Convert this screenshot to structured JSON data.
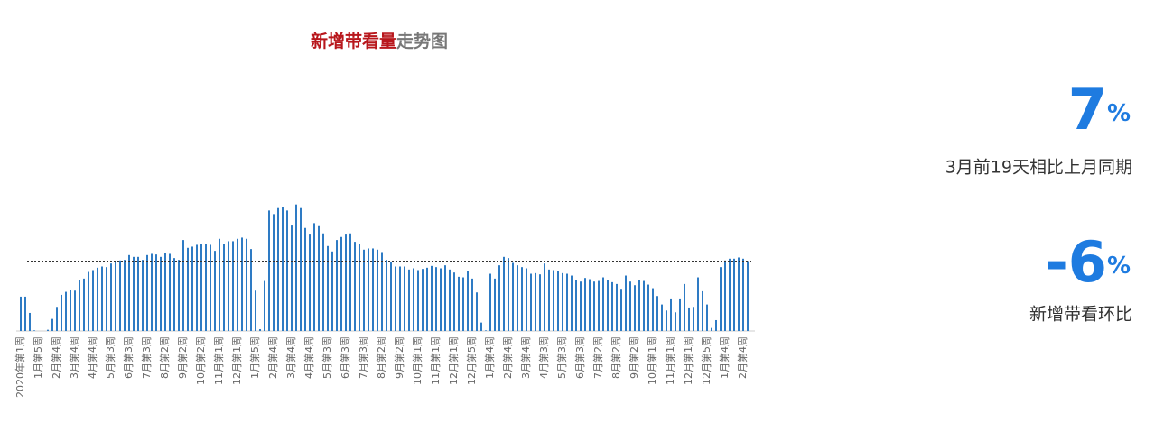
{
  "chart_data": {
    "type": "bar",
    "title": {
      "highlight": "新增带看量",
      "rest": "走势图"
    },
    "categories": [
      "2020年第1周",
      null,
      null,
      null,
      "1月第5周",
      null,
      null,
      null,
      "2月第4周",
      null,
      null,
      null,
      "3月第4周",
      null,
      null,
      null,
      "4月第4周",
      null,
      null,
      null,
      "5月第3周",
      null,
      null,
      null,
      "6月第3周",
      null,
      null,
      null,
      "7月第3周",
      null,
      null,
      null,
      "8月第2周",
      null,
      null,
      null,
      "9月第2周",
      null,
      null,
      null,
      "10月第2周",
      null,
      null,
      null,
      "11月第1周",
      null,
      null,
      null,
      "12月第1周",
      null,
      null,
      null,
      "1月第5周",
      null,
      null,
      null,
      "2月第4周",
      null,
      null,
      null,
      "3月第4周",
      null,
      null,
      null,
      "4月第4周",
      null,
      null,
      null,
      "5月第3周",
      null,
      null,
      null,
      "6月第3周",
      null,
      null,
      null,
      "7月第3周",
      null,
      null,
      null,
      "8月第2周",
      null,
      null,
      null,
      "9月第2周",
      null,
      null,
      null,
      "10月第1周",
      null,
      null,
      null,
      "11月第1周",
      null,
      null,
      null,
      "12月第1周",
      null,
      null,
      null,
      "12月第5周",
      null,
      null,
      null,
      "1月第4周",
      null,
      null,
      null,
      "2月第4周",
      null,
      null,
      null,
      "3月第4周",
      null,
      null,
      null,
      "4月第3周",
      null,
      null,
      null,
      "5月第3周",
      null,
      null,
      null,
      "6月第3周",
      null,
      null,
      null,
      "7月第2周",
      null,
      null,
      null,
      "8月第2周",
      null,
      null,
      null,
      "9月第2周",
      null,
      null,
      null,
      "10月第1周",
      null,
      null,
      null,
      "11月第1周",
      null,
      null,
      null,
      "12月第1周",
      null,
      null,
      null,
      "12月第5周",
      null,
      null,
      null,
      "1月第4周",
      null,
      null,
      null,
      "2月第4周",
      null
    ],
    "values": [
      57,
      57,
      30,
      1,
      0,
      0,
      2,
      20,
      40,
      60,
      65,
      68,
      67,
      84,
      87,
      98,
      101,
      105,
      107,
      106,
      112,
      115,
      117,
      118,
      126,
      123,
      123,
      118,
      126,
      128,
      127,
      123,
      130,
      128,
      121,
      118,
      151,
      138,
      140,
      143,
      145,
      144,
      143,
      133,
      153,
      145,
      149,
      149,
      153,
      155,
      153,
      136,
      67,
      3,
      83,
      200,
      194,
      204,
      206,
      200,
      175,
      210,
      204,
      171,
      160,
      179,
      174,
      162,
      141,
      132,
      151,
      156,
      160,
      162,
      148,
      145,
      135,
      137,
      137,
      135,
      131,
      118,
      115,
      107,
      107,
      107,
      102,
      104,
      101,
      103,
      105,
      108,
      106,
      104,
      109,
      102,
      97,
      90,
      89,
      99,
      87,
      64,
      14,
      1,
      95,
      87,
      109,
      123,
      121,
      113,
      109,
      106,
      104,
      95,
      96,
      94,
      112,
      102,
      101,
      99,
      96,
      95,
      92,
      85,
      82,
      88,
      86,
      82,
      83,
      89,
      85,
      81,
      78,
      70,
      92,
      82,
      76,
      85,
      83,
      77,
      71,
      58,
      44,
      34,
      54,
      31,
      54,
      78,
      39,
      40,
      89,
      66,
      44,
      5,
      18,
      106,
      117,
      120,
      120,
      122,
      120,
      116
    ],
    "color": "#2e7bc4",
    "ylim": [
      0,
      220
    ],
    "reference_line": 116,
    "kpis": [
      {
        "value": 7,
        "unit": "%",
        "label": "3月前19天相比上月同期"
      },
      {
        "value": -6,
        "unit": "%",
        "label": "新增带看环比"
      }
    ]
  }
}
